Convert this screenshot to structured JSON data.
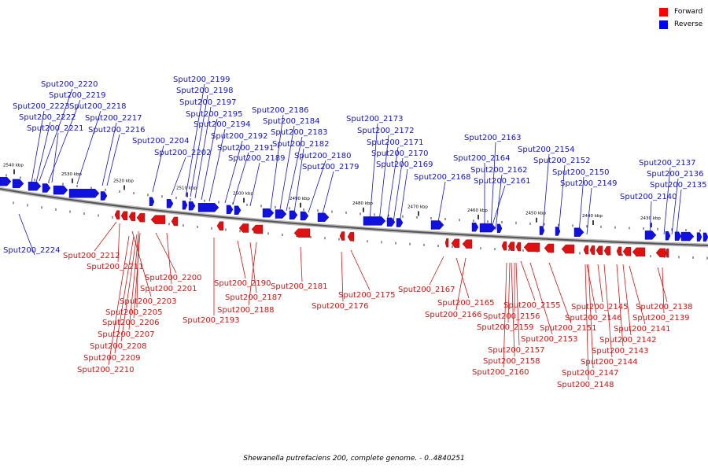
{
  "caption": "Shewanella putrefaciens 200, complete genome. - 0..4840251",
  "legend": {
    "forward": {
      "label": "Forward",
      "color": "#ff0000"
    },
    "reverse": {
      "label": "Reverse",
      "color": "#0000ff"
    }
  },
  "colors": {
    "forward": "#dd1111",
    "reverse": "#1111dd",
    "backbone": "#888888"
  },
  "ticks": [
    "2540 kbp",
    "2530 kbp",
    "2520 kbp",
    "2510 kbp",
    "2500 kbp",
    "2490 kbp",
    "2480 kbp",
    "2470 kbp",
    "2460 kbp",
    "2450 kbp",
    "2440 kbp",
    "2430 kbp"
  ],
  "reverse_labels": [
    "Sput200_2220",
    "Sput200_2219",
    "Sput200_2223",
    "Sput200_2218",
    "Sput200_2222",
    "Sput200_2217",
    "Sput200_2221",
    "Sput200_2216",
    "Sput200_2204",
    "Sput200_2202",
    "Sput200_2199",
    "Sput200_2198",
    "Sput200_2197",
    "Sput200_2195",
    "Sput200_2194",
    "Sput200_2192",
    "Sput200_2191",
    "Sput200_2189",
    "Sput200_2186",
    "Sput200_2184",
    "Sput200_2183",
    "Sput200_2182",
    "Sput200_2180",
    "Sput200_2179",
    "Sput200_2173",
    "Sput200_2172",
    "Sput200_2171",
    "Sput200_2170",
    "Sput200_2169",
    "Sput200_2168",
    "Sput200_2163",
    "Sput200_2164",
    "Sput200_2162",
    "Sput200_2161",
    "Sput200_2154",
    "Sput200_2152",
    "Sput200_2150",
    "Sput200_2149",
    "Sput200_2137",
    "Sput200_2136",
    "Sput200_2135",
    "Sput200_2140",
    "Sput200_2224"
  ],
  "forward_labels": [
    "Sput200_2212",
    "Sput200_2211",
    "Sput200_2200",
    "Sput200_2201",
    "Sput200_2203",
    "Sput200_2205",
    "Sput200_2206",
    "Sput200_2207",
    "Sput200_2208",
    "Sput200_2209",
    "Sput200_2210",
    "Sput200_2190",
    "Sput200_2187",
    "Sput200_2188",
    "Sput200_2193",
    "Sput200_2181",
    "Sput200_2175",
    "Sput200_2176",
    "Sput200_2167",
    "Sput200_2165",
    "Sput200_2166",
    "Sput200_2155",
    "Sput200_2156",
    "Sput200_2159",
    "Sput200_2153",
    "Sput200_2151",
    "Sput200_2157",
    "Sput200_2158",
    "Sput200_2160",
    "Sput200_2145",
    "Sput200_2146",
    "Sput200_2141",
    "Sput200_2142",
    "Sput200_2143",
    "Sput200_2144",
    "Sput200_2147",
    "Sput200_2148",
    "Sput200_2138",
    "Sput200_2139"
  ]
}
